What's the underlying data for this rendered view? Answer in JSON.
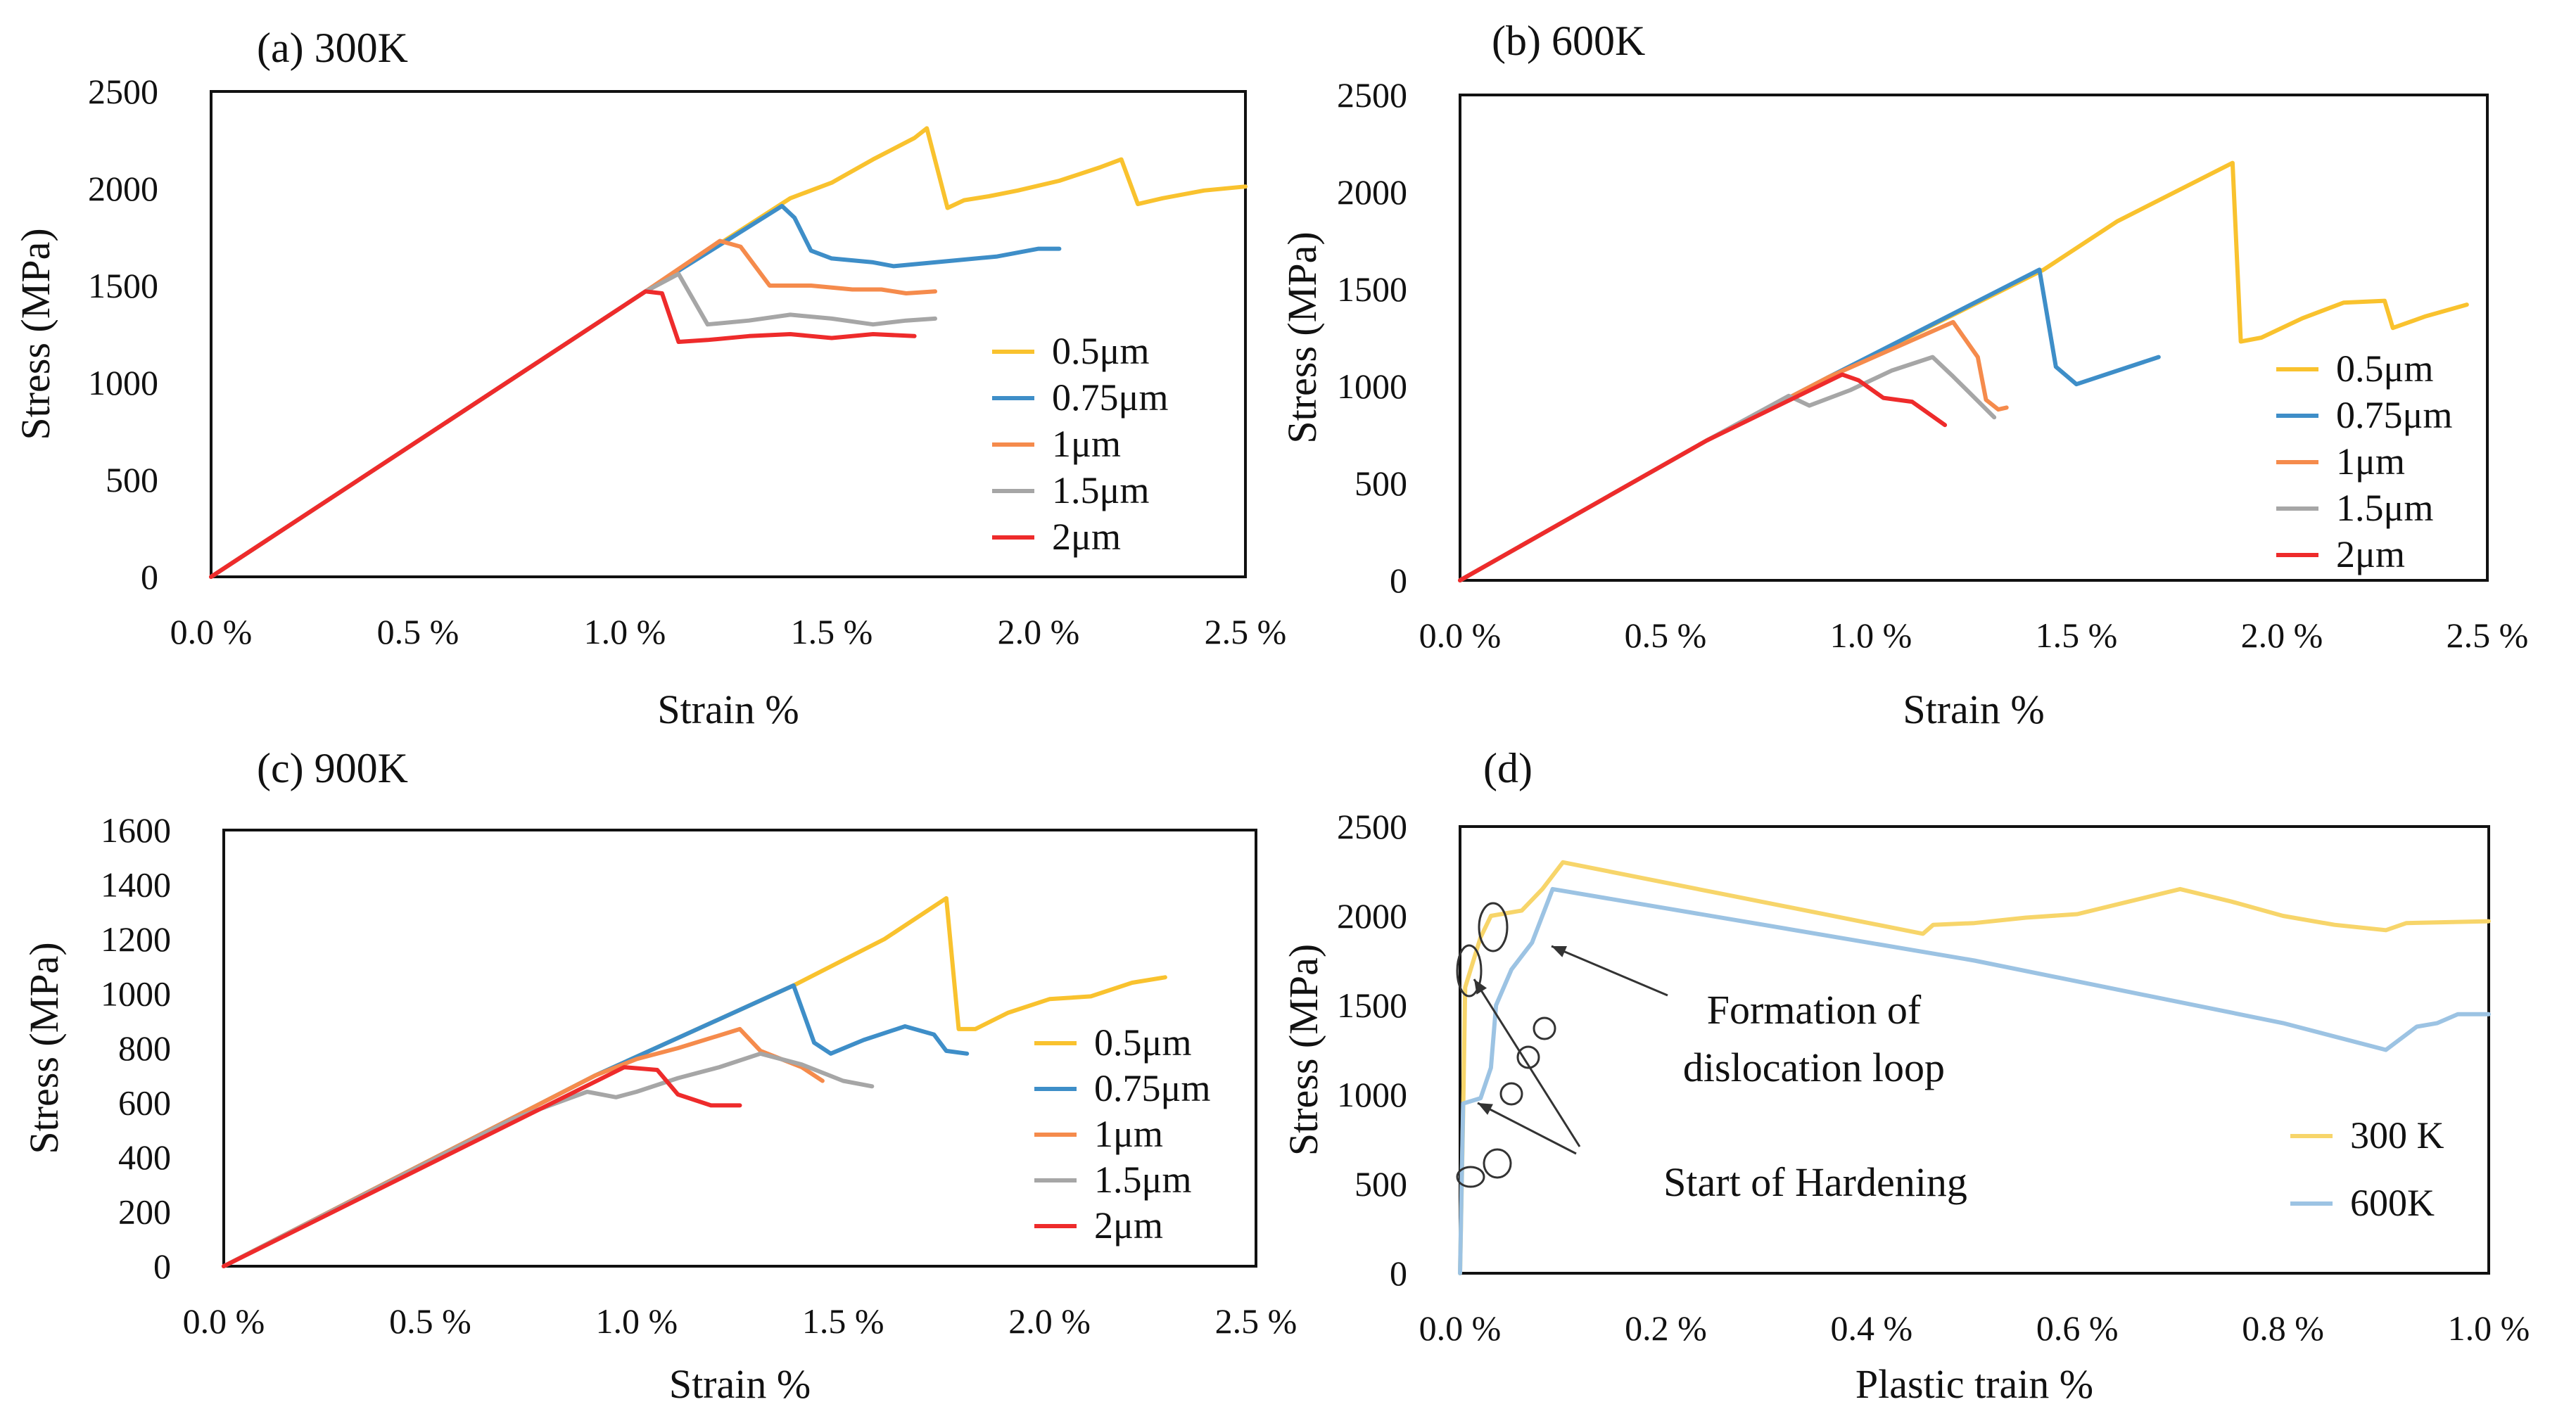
{
  "chart_data": [
    {
      "type": "line",
      "title": "(a) 300K",
      "xlabel": "Strain %",
      "ylabel": "Stress (MPa)",
      "xlim": [
        0,
        2.5
      ],
      "ylim": [
        0,
        2500
      ],
      "xticks": [
        "0.0 %",
        "0.5 %",
        "1.0 %",
        "1.5 %",
        "2.0 %",
        "2.5 %"
      ],
      "yticks": [
        "0",
        "500",
        "1000",
        "1500",
        "2000",
        "2500"
      ],
      "legend_position": "right",
      "grid": false,
      "series": [
        {
          "name": "0.5μm",
          "color": "#F9C22E",
          "x": [
            0,
            1.05,
            1.4,
            1.5,
            1.6,
            1.7,
            1.73,
            1.78,
            1.82,
            1.88,
            1.95,
            2.05,
            2.15,
            2.2,
            2.24,
            2.3,
            2.4,
            2.5
          ],
          "y": [
            0,
            1470,
            1950,
            2030,
            2150,
            2260,
            2310,
            1900,
            1940,
            1960,
            1990,
            2040,
            2110,
            2150,
            1920,
            1950,
            1990,
            2010
          ]
        },
        {
          "name": "0.75μm",
          "color": "#3E8EC8",
          "x": [
            0,
            1.05,
            1.38,
            1.41,
            1.45,
            1.5,
            1.6,
            1.65,
            1.7,
            1.8,
            1.9,
            2.0,
            2.05
          ],
          "y": [
            0,
            1470,
            1910,
            1850,
            1680,
            1640,
            1620,
            1600,
            1610,
            1630,
            1650,
            1690,
            1690
          ]
        },
        {
          "name": "1μm",
          "color": "#F58B4C",
          "x": [
            0,
            1.05,
            1.23,
            1.28,
            1.35,
            1.45,
            1.55,
            1.62,
            1.68,
            1.75
          ],
          "y": [
            0,
            1470,
            1730,
            1700,
            1500,
            1500,
            1480,
            1480,
            1460,
            1470
          ]
        },
        {
          "name": "1.5μm",
          "color": "#A6A6A6",
          "x": [
            0,
            1.05,
            1.13,
            1.2,
            1.3,
            1.4,
            1.5,
            1.6,
            1.68,
            1.75
          ],
          "y": [
            0,
            1470,
            1560,
            1300,
            1320,
            1350,
            1330,
            1300,
            1320,
            1330
          ]
        },
        {
          "name": "2μm",
          "color": "#EE2B2B",
          "x": [
            0,
            1.05,
            1.09,
            1.13,
            1.2,
            1.3,
            1.4,
            1.5,
            1.6,
            1.7
          ],
          "y": [
            0,
            1470,
            1460,
            1210,
            1220,
            1240,
            1250,
            1230,
            1250,
            1240
          ]
        }
      ]
    },
    {
      "type": "line",
      "title": "(b) 600K",
      "xlabel": "Strain %",
      "ylabel": "Stress (MPa)",
      "xlim": [
        0,
        2.5
      ],
      "ylim": [
        0,
        2500
      ],
      "xticks": [
        "0.0 %",
        "0.5 %",
        "1.0 %",
        "1.5 %",
        "2.0 %",
        "2.5 %"
      ],
      "yticks": [
        "0",
        "500",
        "1000",
        "1500",
        "2000",
        "2500"
      ],
      "legend_position": "right",
      "grid": false,
      "series": [
        {
          "name": "0.5μm",
          "color": "#F9C22E",
          "x": [
            0,
            0.6,
            0.9,
            1.42,
            1.6,
            1.88,
            1.9,
            1.95,
            2.05,
            2.15,
            2.25,
            2.27,
            2.35,
            2.45
          ],
          "y": [
            0,
            720,
            1050,
            1600,
            1850,
            2150,
            1230,
            1250,
            1350,
            1430,
            1440,
            1300,
            1360,
            1420
          ]
        },
        {
          "name": "0.75μm",
          "color": "#3E8EC8",
          "x": [
            0,
            0.6,
            0.9,
            1.41,
            1.45,
            1.5,
            1.6,
            1.7
          ],
          "y": [
            0,
            720,
            1050,
            1600,
            1100,
            1010,
            1080,
            1150
          ]
        },
        {
          "name": "1μm",
          "color": "#F58B4C",
          "x": [
            0,
            0.6,
            0.9,
            1.2,
            1.26,
            1.28,
            1.31,
            1.33
          ],
          "y": [
            0,
            720,
            1050,
            1330,
            1150,
            930,
            880,
            890
          ]
        },
        {
          "name": "1.5μm",
          "color": "#A6A6A6",
          "x": [
            0,
            0.6,
            0.8,
            0.85,
            0.95,
            1.05,
            1.15,
            1.2,
            1.3
          ],
          "y": [
            0,
            720,
            950,
            900,
            980,
            1080,
            1150,
            1050,
            840
          ]
        },
        {
          "name": "2μm",
          "color": "#EE2B2B",
          "x": [
            0,
            0.6,
            0.93,
            0.97,
            1.03,
            1.1,
            1.18
          ],
          "y": [
            0,
            720,
            1060,
            1030,
            940,
            920,
            800
          ]
        }
      ]
    },
    {
      "type": "line",
      "title": "(c) 900K",
      "xlabel": "Strain %",
      "ylabel": "Stress (MPa)",
      "xlim": [
        0,
        2.5
      ],
      "ylim": [
        0,
        1600
      ],
      "xticks": [
        "0.0 %",
        "0.5 %",
        "1.0 %",
        "1.5 %",
        "2.0 %",
        "2.5 %"
      ],
      "yticks": [
        "0",
        "200",
        "400",
        "600",
        "800",
        "1000",
        "1200",
        "1400",
        "1600"
      ],
      "legend_position": "right",
      "grid": false,
      "series": [
        {
          "name": "0.5μm",
          "color": "#F9C22E",
          "x": [
            0,
            0.9,
            1.38,
            1.6,
            1.75,
            1.78,
            1.82,
            1.9,
            2.0,
            2.1,
            2.2,
            2.28
          ],
          "y": [
            0,
            700,
            1030,
            1200,
            1350,
            870,
            870,
            930,
            980,
            990,
            1040,
            1060
          ]
        },
        {
          "name": "0.75μm",
          "color": "#3E8EC8",
          "x": [
            0,
            0.9,
            1.38,
            1.43,
            1.47,
            1.55,
            1.65,
            1.72,
            1.75,
            1.8
          ],
          "y": [
            0,
            700,
            1030,
            820,
            780,
            830,
            880,
            850,
            790,
            780
          ]
        },
        {
          "name": "1μm",
          "color": "#F58B4C",
          "x": [
            0,
            0.9,
            1.0,
            1.1,
            1.25,
            1.3,
            1.4,
            1.45
          ],
          "y": [
            0,
            700,
            760,
            800,
            870,
            790,
            730,
            680
          ]
        },
        {
          "name": "1.5μm",
          "color": "#A6A6A6",
          "x": [
            0,
            0.7,
            0.88,
            0.95,
            1.0,
            1.1,
            1.2,
            1.3,
            1.4,
            1.5,
            1.57
          ],
          "y": [
            0,
            540,
            640,
            620,
            640,
            690,
            730,
            780,
            740,
            680,
            660
          ]
        },
        {
          "name": "2μm",
          "color": "#EE2B2B",
          "x": [
            0,
            0.97,
            1.05,
            1.1,
            1.18,
            1.25
          ],
          "y": [
            0,
            730,
            720,
            630,
            590,
            590
          ]
        }
      ]
    },
    {
      "type": "line",
      "title": "(d)",
      "xlabel": "Plastic train %",
      "ylabel": "Stress (MPa)",
      "xlim": [
        0,
        1.0
      ],
      "ylim": [
        0,
        2500
      ],
      "xticks": [
        "0.0 %",
        "0.2 %",
        "0.4 %",
        "0.6 %",
        "0.8 %",
        "1.0 %"
      ],
      "yticks": [
        "0",
        "500",
        "1000",
        "1500",
        "2000",
        "2500"
      ],
      "legend_position": "bottom-right",
      "grid": false,
      "series": [
        {
          "name": "300 K",
          "color": "#F7D56A",
          "x": [
            0,
            0.003,
            0.005,
            0.02,
            0.03,
            0.06,
            0.08,
            0.1,
            0.45,
            0.46,
            0.5,
            0.55,
            0.6,
            0.65,
            0.7,
            0.75,
            0.8,
            0.85,
            0.9,
            0.92,
            1.0
          ],
          "y": [
            0,
            900,
            1600,
            1880,
            2000,
            2030,
            2150,
            2300,
            1900,
            1950,
            1960,
            1990,
            2010,
            2080,
            2150,
            2080,
            2000,
            1950,
            1920,
            1960,
            1970
          ]
        },
        {
          "name": "600K",
          "color": "#9CC3E3",
          "x": [
            0,
            0.003,
            0.02,
            0.03,
            0.035,
            0.05,
            0.07,
            0.09,
            0.5,
            0.8,
            0.9,
            0.93,
            0.95,
            0.97,
            1.0
          ],
          "y": [
            0,
            950,
            980,
            1150,
            1500,
            1700,
            1850,
            2150,
            1750,
            1400,
            1250,
            1380,
            1400,
            1450,
            1450
          ]
        }
      ],
      "annotations": [
        {
          "text_lines": [
            "Formation of",
            "dislocation loop"
          ]
        },
        {
          "text_lines": [
            "Start of Hardening"
          ]
        }
      ]
    }
  ]
}
